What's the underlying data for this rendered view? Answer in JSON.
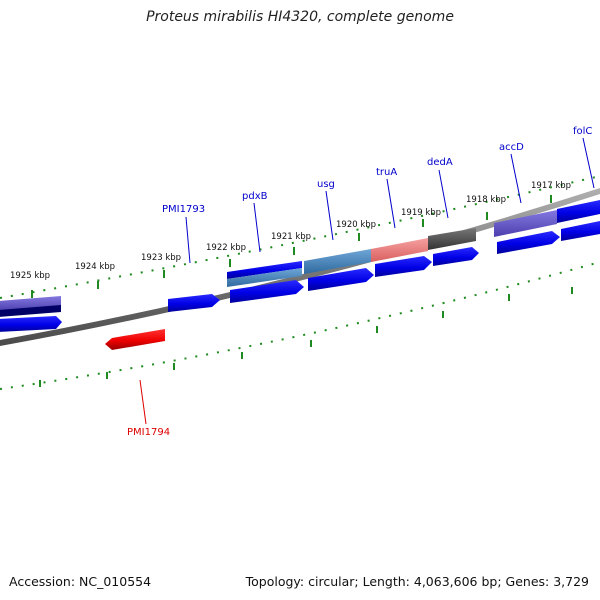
{
  "title": "Proteus mirabilis HI4320, complete genome",
  "footer": {
    "accession": "Accession: NC_010554",
    "summary": "Topology: circular; Length: 4,063,606 bp; Genes: 3,729"
  },
  "kbp_labels": [
    "1925 kbp",
    "1924 kbp",
    "1923 kbp",
    "1922 kbp",
    "1921 kbp",
    "1920 kbp",
    "1919 kbp",
    "1918 kbp",
    "1917 kbp"
  ],
  "gene_labels": [
    {
      "name": "PMI1793",
      "color": "#0000cc"
    },
    {
      "name": "pdxB",
      "color": "#0000cc"
    },
    {
      "name": "usg",
      "color": "#0000cc"
    },
    {
      "name": "truA",
      "color": "#0000cc"
    },
    {
      "name": "dedA",
      "color": "#0000cc"
    },
    {
      "name": "accD",
      "color": "#0000cc"
    },
    {
      "name": "folC",
      "color": "#0000cc"
    },
    {
      "name": "PMI1794",
      "color": "#dd0000"
    }
  ],
  "colors": {
    "forward_gene": "#0000e6",
    "reverse_gene": "#ee0000",
    "backbone": "#808080",
    "ticks": "#1f8a1f",
    "cds_purple": "#6a5acd",
    "cds_steel": "#4682b4",
    "cds_salmon": "#f08080",
    "cds_gray": "#555555"
  }
}
